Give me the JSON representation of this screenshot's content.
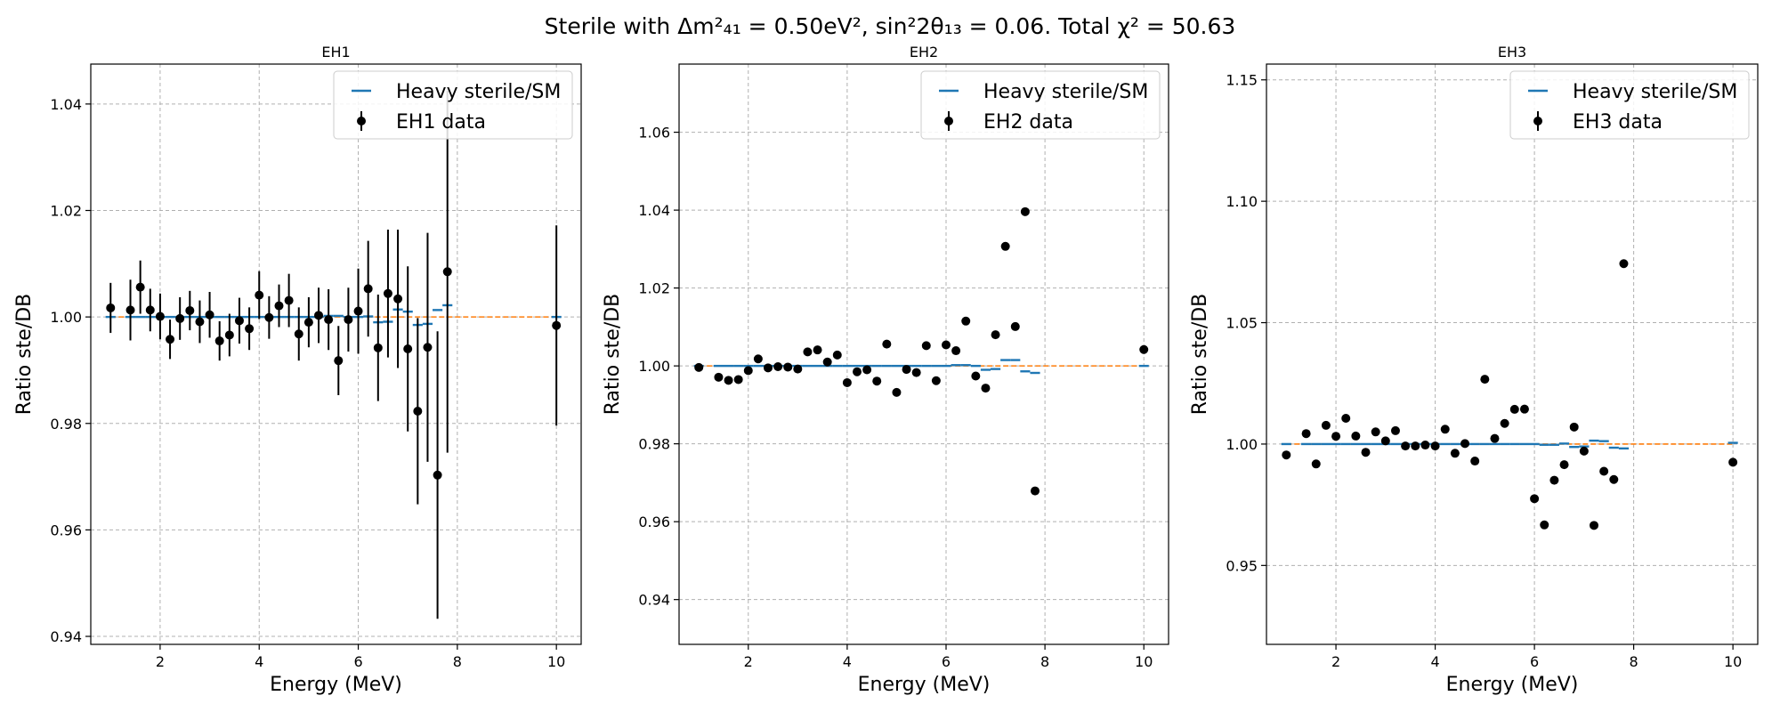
{
  "figure": {
    "title_prefix": "Sterile with ",
    "title_math": "Δm²₄₁ = 0.50eV², sin²2θ₁₃ = 0.06. Total χ² = 50.63"
  },
  "chart_data": [
    {
      "type": "scatter",
      "title": "EH1",
      "xlabel": "Energy (MeV)",
      "ylabel": "Ratio ste/DB",
      "xlim": [
        0.6,
        10.5
      ],
      "ylim": [
        0.9385,
        1.0475
      ],
      "xticks": [
        2,
        4,
        6,
        8,
        10
      ],
      "yticks": [
        0.94,
        0.96,
        0.98,
        1.0,
        1.02,
        1.04
      ],
      "ytick_labels": [
        "0.94",
        "0.96",
        "0.98",
        "1.00",
        "1.02",
        "1.04"
      ],
      "grid": true,
      "legend_position": "top-right",
      "legend": [
        "Heavy sterile/SM",
        "EH1 data"
      ],
      "data": {
        "name": "EH1 data",
        "x": [
          1.0,
          1.4,
          1.6,
          1.8,
          2.0,
          2.2,
          2.4,
          2.6,
          2.8,
          3.0,
          3.2,
          3.4,
          3.6,
          3.8,
          4.0,
          4.2,
          4.4,
          4.6,
          4.8,
          5.0,
          5.2,
          5.4,
          5.6,
          5.8,
          6.0,
          6.2,
          6.4,
          6.6,
          6.8,
          7.0,
          7.2,
          7.4,
          7.6,
          7.8,
          10.0
        ],
        "y": [
          1.0017,
          1.0013,
          1.0056,
          1.0013,
          1.0001,
          0.9958,
          0.9997,
          1.0012,
          0.9991,
          1.0004,
          0.9955,
          0.9966,
          0.9993,
          0.9978,
          1.0041,
          0.9999,
          1.0021,
          1.0031,
          0.9968,
          0.999,
          1.0003,
          0.9995,
          0.9918,
          0.9995,
          1.0011,
          1.0053,
          0.9942,
          1.0044,
          1.0034,
          0.994,
          0.9823,
          0.9943,
          0.9703,
          1.0085,
          0.9984
        ],
        "yerr": [
          0.0047,
          0.0057,
          0.005,
          0.004,
          0.0043,
          0.0037,
          0.004,
          0.0037,
          0.004,
          0.0043,
          0.0037,
          0.004,
          0.0043,
          0.004,
          0.0045,
          0.004,
          0.004,
          0.005,
          0.005,
          0.0047,
          0.0052,
          0.0057,
          0.0065,
          0.006,
          0.008,
          0.009,
          0.01,
          0.012,
          0.013,
          0.0155,
          0.0175,
          0.0215,
          0.027,
          0.034,
          0.0188
        ]
      },
      "model_steps": {
        "name": "Heavy sterile/SM",
        "x": [
          1.0,
          1.4,
          1.6,
          1.8,
          2.0,
          2.2,
          2.4,
          2.6,
          2.8,
          3.0,
          3.2,
          3.4,
          3.6,
          3.8,
          4.0,
          4.2,
          4.4,
          4.6,
          4.8,
          5.0,
          5.2,
          5.4,
          5.6,
          5.8,
          6.0,
          6.2,
          6.4,
          6.6,
          6.8,
          7.0,
          7.2,
          7.4,
          7.6,
          7.8,
          10.0
        ],
        "y": [
          1.0,
          1.0,
          1.0,
          1.0,
          1.0,
          1.0,
          1.0,
          1.0,
          1.0,
          1.0,
          1.0,
          1.0,
          1.0,
          1.0,
          1.0,
          1.0,
          1.0,
          1.0,
          1.0,
          1.0,
          1.0,
          1.0002,
          1.0002,
          1.0,
          1.0,
          1.0001,
          0.999,
          0.9991,
          1.0014,
          1.001,
          0.9985,
          0.9987,
          1.0013,
          1.0022,
          1.0
        ]
      },
      "baseline": 1.0
    },
    {
      "type": "scatter",
      "title": "EH2",
      "xlabel": "Energy (MeV)",
      "ylabel": "Ratio ste/DB",
      "xlim": [
        0.6,
        10.5
      ],
      "ylim": [
        0.9285,
        1.0775
      ],
      "xticks": [
        2,
        4,
        6,
        8,
        10
      ],
      "yticks": [
        0.94,
        0.96,
        0.98,
        1.0,
        1.02,
        1.04,
        1.06
      ],
      "ytick_labels": [
        "0.94",
        "0.96",
        "0.98",
        "1.00",
        "1.02",
        "1.04",
        "1.06"
      ],
      "grid": true,
      "legend_position": "top-right",
      "legend": [
        "Heavy sterile/SM",
        "EH2 data"
      ],
      "data": {
        "name": "EH2 data",
        "x": [
          1.0,
          1.4,
          1.6,
          1.8,
          2.0,
          2.2,
          2.4,
          2.6,
          2.8,
          3.0,
          3.2,
          3.4,
          3.6,
          3.8,
          4.0,
          4.2,
          4.4,
          4.6,
          4.8,
          5.0,
          5.2,
          5.4,
          5.6,
          5.8,
          6.0,
          6.2,
          6.4,
          6.6,
          6.8,
          7.0,
          7.2,
          7.4,
          7.6,
          7.8,
          10.0
        ],
        "y": [
          0.9996,
          0.9971,
          0.9963,
          0.9965,
          0.9988,
          1.0018,
          0.9995,
          0.9998,
          0.9997,
          0.9992,
          1.0036,
          1.0041,
          1.001,
          1.0028,
          0.9957,
          0.9985,
          0.999,
          0.9961,
          1.0056,
          0.9932,
          0.9991,
          0.9983,
          1.0052,
          0.9962,
          1.0054,
          1.0039,
          1.0115,
          0.9974,
          0.9943,
          1.008,
          1.0307,
          1.0101,
          1.0396,
          0.9679,
          1.0042
        ]
      },
      "model_steps": {
        "name": "Heavy sterile/SM",
        "x": [
          1.0,
          1.4,
          1.6,
          1.8,
          2.0,
          2.2,
          2.4,
          2.6,
          2.8,
          3.0,
          3.2,
          3.4,
          3.6,
          3.8,
          4.0,
          4.2,
          4.4,
          4.6,
          4.8,
          5.0,
          5.2,
          5.4,
          5.6,
          5.8,
          6.0,
          6.2,
          6.4,
          6.6,
          6.8,
          7.0,
          7.2,
          7.4,
          7.6,
          7.8,
          10.0
        ],
        "y": [
          1.0,
          1.0,
          1.0,
          1.0,
          1.0,
          1.0,
          1.0,
          1.0,
          1.0,
          1.0,
          1.0,
          1.0,
          1.0,
          1.0,
          1.0,
          1.0,
          1.0,
          1.0,
          1.0,
          1.0,
          1.0,
          1.0,
          1.0,
          1.0,
          1.0,
          1.0002,
          1.0002,
          1.0,
          0.999,
          0.9992,
          1.0015,
          1.0015,
          0.9986,
          0.9982,
          1.0
        ]
      },
      "baseline": 1.0
    },
    {
      "type": "scatter",
      "title": "EH3",
      "xlabel": "Energy (MeV)",
      "ylabel": "Ratio ste/DB",
      "xlim": [
        0.6,
        10.5
      ],
      "ylim": [
        0.9175,
        1.1565
      ],
      "xticks": [
        2,
        4,
        6,
        8,
        10
      ],
      "yticks": [
        0.95,
        1.0,
        1.05,
        1.1,
        1.15
      ],
      "ytick_labels": [
        "0.95",
        "1.00",
        "1.05",
        "1.10",
        "1.15"
      ],
      "grid": true,
      "legend_position": "top-right",
      "legend": [
        "Heavy sterile/SM",
        "EH3 data"
      ],
      "data": {
        "name": "EH3 data",
        "x": [
          1.0,
          1.4,
          1.6,
          1.8,
          2.0,
          2.2,
          2.4,
          2.6,
          2.8,
          3.0,
          3.2,
          3.4,
          3.6,
          3.8,
          4.0,
          4.2,
          4.4,
          4.6,
          4.8,
          5.0,
          5.2,
          5.4,
          5.6,
          5.8,
          6.0,
          6.2,
          6.4,
          6.6,
          6.8,
          7.0,
          7.2,
          7.4,
          7.6,
          7.8,
          10.0
        ],
        "y": [
          0.9955,
          1.0043,
          0.9918,
          1.0077,
          1.0032,
          1.0106,
          1.0033,
          0.9966,
          1.005,
          1.0013,
          1.0055,
          0.9992,
          0.9992,
          0.9996,
          0.9992,
          1.0061,
          0.9962,
          1.0002,
          0.993,
          1.0267,
          1.0023,
          1.0085,
          1.0143,
          1.0144,
          0.9775,
          0.9667,
          0.9851,
          0.9915,
          1.007,
          0.9971,
          0.9665,
          0.9888,
          0.9854,
          1.0743,
          0.9925
        ]
      },
      "model_steps": {
        "name": "Heavy sterile/SM",
        "x": [
          1.0,
          1.4,
          1.6,
          1.8,
          2.0,
          2.2,
          2.4,
          2.6,
          2.8,
          3.0,
          3.2,
          3.4,
          3.6,
          3.8,
          4.0,
          4.2,
          4.4,
          4.6,
          4.8,
          5.0,
          5.2,
          5.4,
          5.6,
          5.8,
          6.0,
          6.2,
          6.4,
          6.6,
          6.8,
          7.0,
          7.2,
          7.4,
          7.6,
          7.8,
          10.0
        ],
        "y": [
          1.0,
          1.0,
          1.0,
          1.0,
          1.0,
          1.0,
          1.0,
          1.0,
          1.0,
          1.0,
          1.0,
          1.0,
          1.0,
          1.0,
          1.0,
          1.0,
          1.0,
          1.0,
          1.0,
          1.0,
          1.0,
          1.0,
          1.0,
          1.0,
          1.0,
          0.9997,
          0.9997,
          1.0002,
          0.9988,
          0.999,
          1.0014,
          1.0012,
          0.9985,
          0.9982,
          1.0005
        ]
      },
      "baseline": 1.0
    }
  ],
  "colors": {
    "data_points": "#000000",
    "model_steps": "#1f77b4",
    "baseline": "#ff7f0e",
    "grid": "#b0b0b0",
    "legend_border": "#cccccc"
  }
}
